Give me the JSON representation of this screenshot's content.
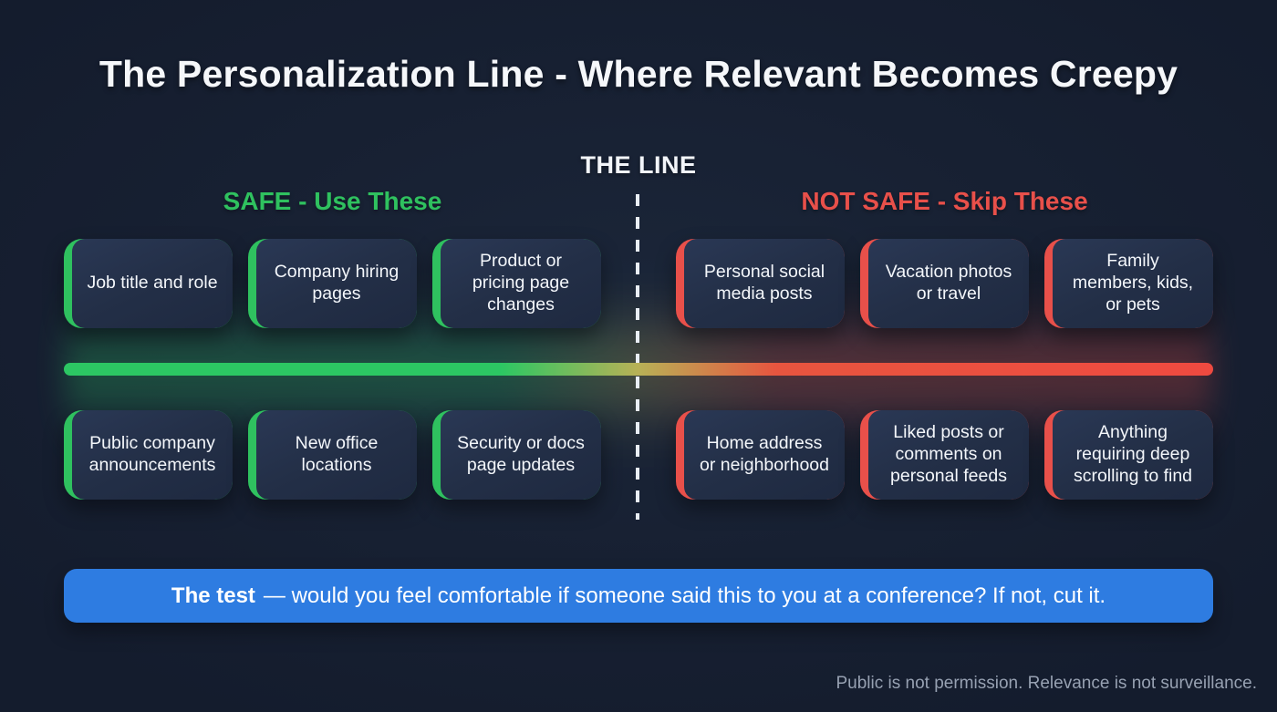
{
  "title": "The Personalization Line - Where Relevant Becomes Creepy",
  "divider": {
    "label": "THE LINE"
  },
  "columns": {
    "safe": {
      "header": "SAFE - Use These",
      "top_cards": [
        "Job title and role",
        "Company hiring pages",
        "Product or pricing page changes"
      ],
      "bottom_cards": [
        "Public company announcements",
        "New office locations",
        "Security or docs page updates"
      ]
    },
    "not_safe": {
      "header": "NOT SAFE - Skip These",
      "top_cards": [
        "Personal social media posts",
        "Vacation photos or travel",
        "Family members, kids, or pets"
      ],
      "bottom_cards": [
        "Home address or neighborhood",
        "Liked posts or comments on personal feeds",
        "Anything requiring deep scrolling to find"
      ]
    }
  },
  "banner": {
    "bold": "The test",
    "rest": "— would you feel comfortable if someone said this to you at a conference? If not, cut it."
  },
  "footer": "Public is not permission. Relevance is not surveillance.",
  "theme": {
    "safe_accent": "#2fc15f",
    "not_safe_accent": "#e8504a",
    "line_green": "#2cc763",
    "line_red": "#ef4a40",
    "banner_bg": "#2e7ce1",
    "background": "#172032",
    "card_background": "#232f47",
    "text_primary": "#f3f6fa",
    "footer_text": "#97a1b2"
  }
}
